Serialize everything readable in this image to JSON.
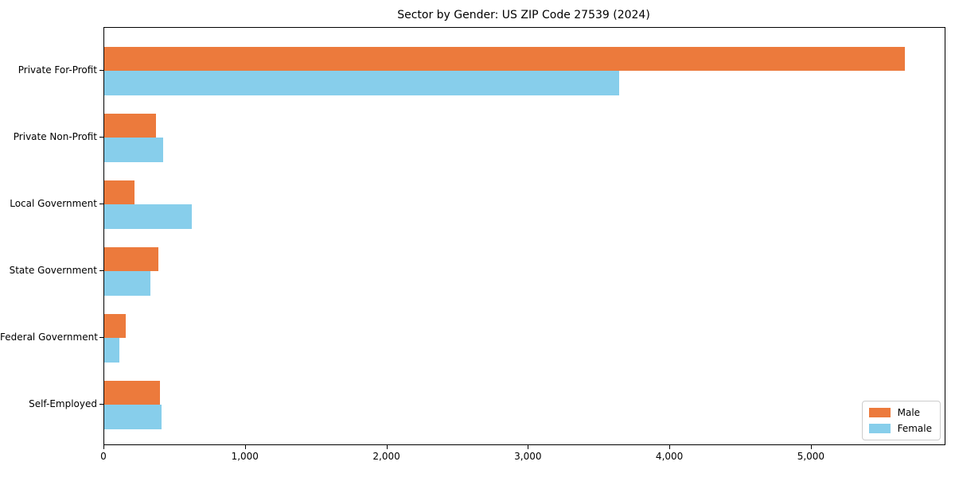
{
  "chart_data": {
    "type": "bar",
    "orientation": "horizontal",
    "title": "Sector by Gender: US ZIP Code 27539 (2024)",
    "categories": [
      "Private For-Profit",
      "Private Non-Profit",
      "Local Government",
      "State Government",
      "Federal Government",
      "Self-Employed"
    ],
    "series": [
      {
        "name": "Male",
        "color": "#EC7A3C",
        "values": [
          5660,
          365,
          215,
          380,
          150,
          395
        ]
      },
      {
        "name": "Female",
        "color": "#87CEEB",
        "values": [
          3640,
          415,
          620,
          325,
          105,
          405
        ]
      }
    ],
    "xlabel": "",
    "ylabel": "",
    "xlim": [
      0,
      5940
    ],
    "x_ticks": [
      0,
      1000,
      2000,
      3000,
      4000,
      5000
    ],
    "x_tick_labels": [
      "0",
      "1,000",
      "2,000",
      "3,000",
      "4,000",
      "5,000"
    ],
    "grid": false,
    "legend_position": "lower right",
    "axis_color": "#000000",
    "background_color": "#ffffff"
  }
}
